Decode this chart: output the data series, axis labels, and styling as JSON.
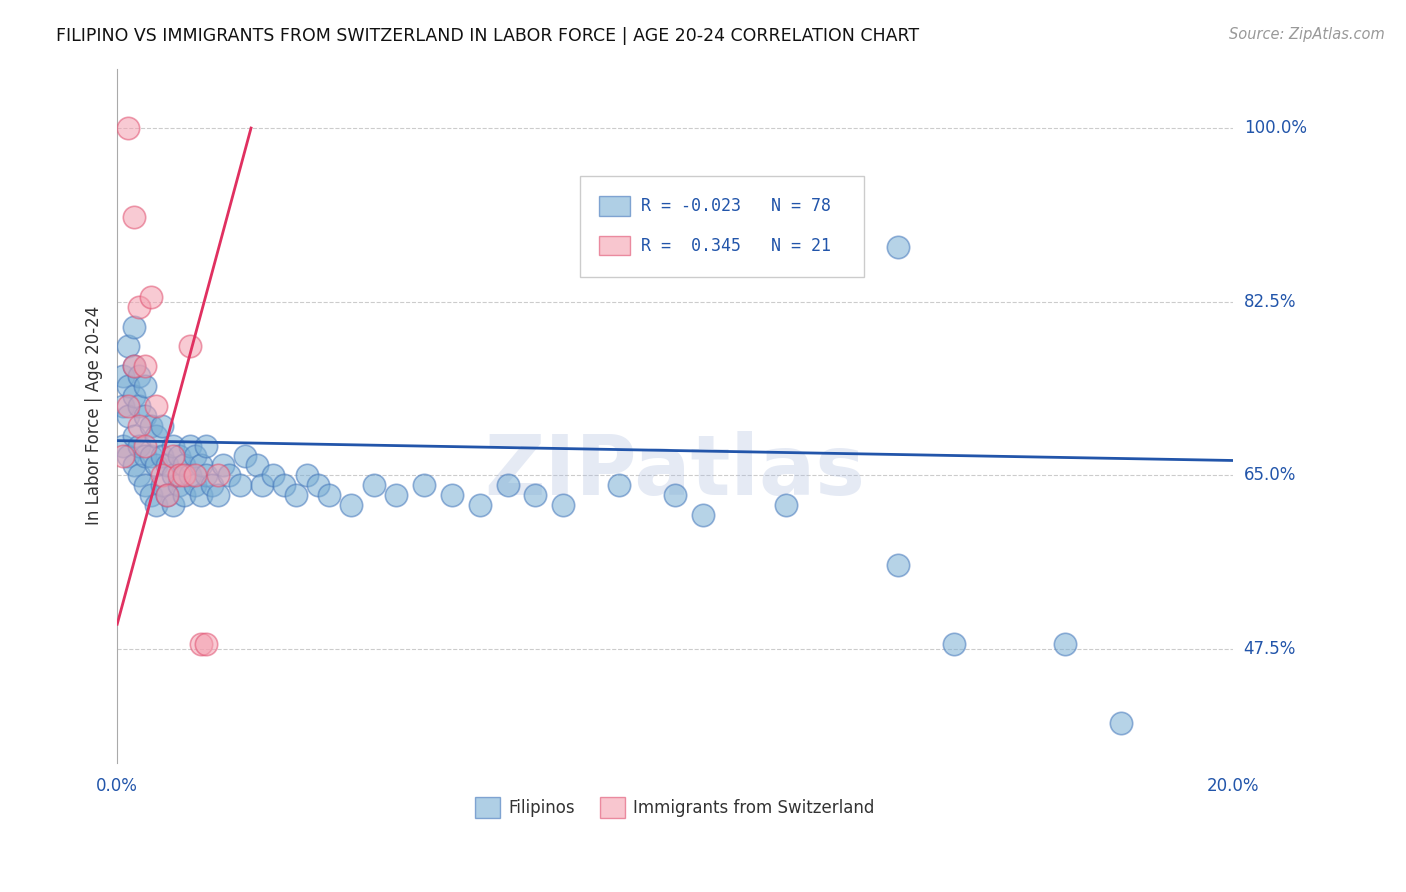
{
  "title": "FILIPINO VS IMMIGRANTS FROM SWITZERLAND IN LABOR FORCE | AGE 20-24 CORRELATION CHART",
  "source": "Source: ZipAtlas.com",
  "ylabel": "In Labor Force | Age 20-24",
  "y_ticks": [
    0.475,
    0.65,
    0.825,
    1.0
  ],
  "y_tick_labels": [
    "47.5%",
    "65.0%",
    "82.5%",
    "100.0%"
  ],
  "x_min": 0.0,
  "x_max": 0.2,
  "y_min": 0.36,
  "y_max": 1.06,
  "blue_R": -0.023,
  "blue_N": 78,
  "pink_R": 0.345,
  "pink_N": 21,
  "blue_color": "#7BAFD4",
  "pink_color": "#F4A0B0",
  "blue_edge_color": "#4477BB",
  "pink_edge_color": "#E05070",
  "blue_line_color": "#2255AA",
  "pink_line_color": "#E03060",
  "legend_label_blue": "Filipinos",
  "legend_label_pink": "Immigrants from Switzerland",
  "watermark": "ZIPatlas",
  "blue_line_x": [
    0.0,
    0.2
  ],
  "blue_line_y": [
    0.685,
    0.665
  ],
  "pink_line_x": [
    0.0,
    0.024
  ],
  "pink_line_y": [
    0.5,
    1.0
  ],
  "blue_x": [
    0.001,
    0.001,
    0.001,
    0.002,
    0.002,
    0.002,
    0.002,
    0.003,
    0.003,
    0.003,
    0.003,
    0.003,
    0.004,
    0.004,
    0.004,
    0.004,
    0.005,
    0.005,
    0.005,
    0.005,
    0.006,
    0.006,
    0.006,
    0.007,
    0.007,
    0.007,
    0.008,
    0.008,
    0.008,
    0.009,
    0.009,
    0.01,
    0.01,
    0.01,
    0.011,
    0.011,
    0.012,
    0.012,
    0.013,
    0.013,
    0.014,
    0.014,
    0.015,
    0.015,
    0.016,
    0.016,
    0.017,
    0.018,
    0.019,
    0.02,
    0.022,
    0.023,
    0.025,
    0.026,
    0.028,
    0.03,
    0.032,
    0.034,
    0.036,
    0.038,
    0.042,
    0.046,
    0.05,
    0.055,
    0.06,
    0.065,
    0.07,
    0.075,
    0.08,
    0.09,
    0.1,
    0.105,
    0.12,
    0.14,
    0.15,
    0.17,
    0.18,
    0.14
  ],
  "blue_y": [
    0.68,
    0.72,
    0.75,
    0.67,
    0.71,
    0.74,
    0.78,
    0.66,
    0.69,
    0.73,
    0.76,
    0.8,
    0.65,
    0.68,
    0.72,
    0.75,
    0.64,
    0.67,
    0.71,
    0.74,
    0.63,
    0.67,
    0.7,
    0.62,
    0.66,
    0.69,
    0.64,
    0.67,
    0.7,
    0.63,
    0.66,
    0.62,
    0.65,
    0.68,
    0.64,
    0.67,
    0.63,
    0.66,
    0.65,
    0.68,
    0.64,
    0.67,
    0.63,
    0.66,
    0.65,
    0.68,
    0.64,
    0.63,
    0.66,
    0.65,
    0.64,
    0.67,
    0.66,
    0.64,
    0.65,
    0.64,
    0.63,
    0.65,
    0.64,
    0.63,
    0.62,
    0.64,
    0.63,
    0.64,
    0.63,
    0.62,
    0.64,
    0.63,
    0.62,
    0.64,
    0.63,
    0.61,
    0.62,
    0.56,
    0.48,
    0.48,
    0.4,
    0.88
  ],
  "pink_x": [
    0.001,
    0.002,
    0.002,
    0.003,
    0.003,
    0.004,
    0.004,
    0.005,
    0.005,
    0.006,
    0.007,
    0.008,
    0.009,
    0.01,
    0.011,
    0.012,
    0.013,
    0.014,
    0.015,
    0.016,
    0.018
  ],
  "pink_y": [
    0.67,
    0.72,
    1.0,
    0.76,
    0.91,
    0.7,
    0.82,
    0.68,
    0.76,
    0.83,
    0.72,
    0.65,
    0.63,
    0.67,
    0.65,
    0.65,
    0.78,
    0.65,
    0.48,
    0.48,
    0.65
  ]
}
